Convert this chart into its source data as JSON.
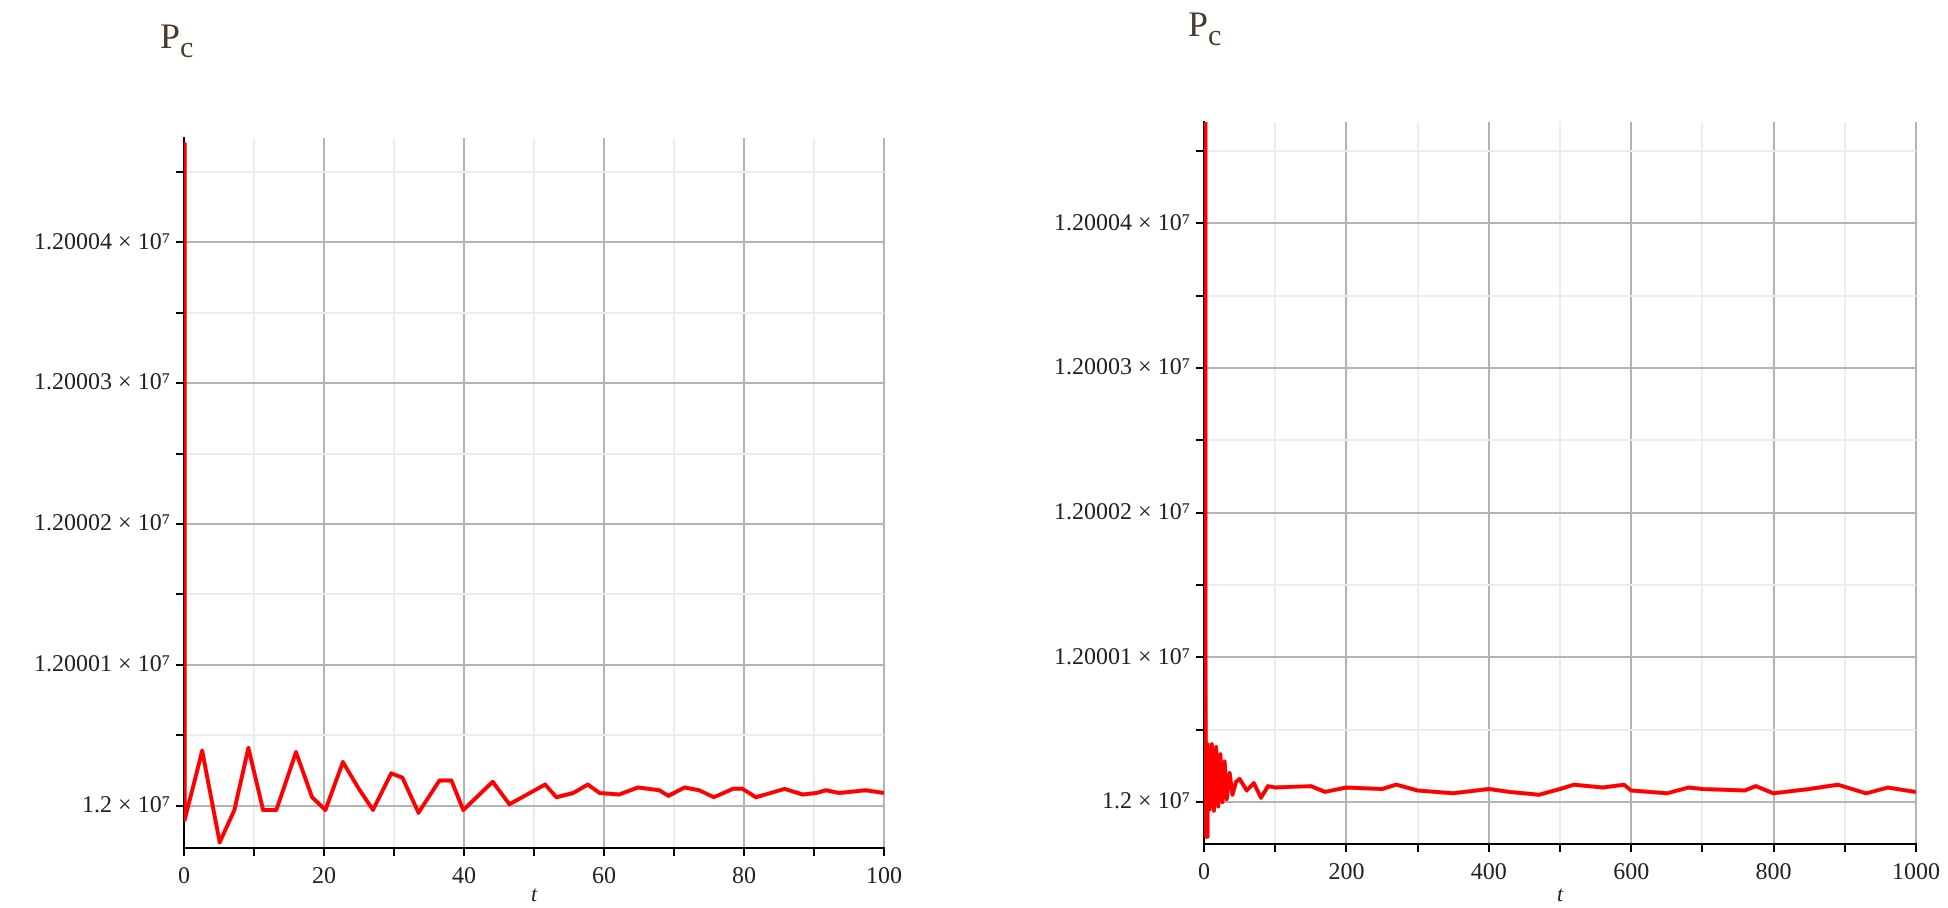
{
  "chart_data": [
    {
      "type": "line",
      "title": "P$_{c}$",
      "xlabel": "t",
      "marker": "none",
      "line_style": "solid",
      "grid": true,
      "x": [
        0,
        0.1,
        2.6,
        5.1,
        7.2,
        9.2,
        11.3,
        13.2,
        16,
        18.3,
        20.2,
        22.7,
        25.1,
        27,
        29.6,
        31.2,
        33.5,
        36.5,
        38.2,
        39.9,
        44.1,
        46.5,
        51.6,
        53.2,
        55.6,
        57.7,
        59.4,
        62.2,
        64.9,
        67.9,
        69.2,
        71.5,
        73.6,
        75.7,
        78.4,
        79.8,
        81.7,
        85.8,
        88.4,
        90.3,
        91.7,
        93.6,
        97.4,
        100
      ],
      "series": [
        {
          "color": "#ff0000",
          "values": [
            12000470,
            11999990,
            12000039,
            11999974,
            11999997,
            12000041,
            11999997,
            11999997,
            12000038,
            12000006,
            11999997,
            12000031,
            12000011,
            11999997,
            12000023,
            12000020,
            11999995,
            12000018,
            12000018,
            11999997,
            12000017,
            12000001,
            12000015,
            12000006,
            12000009,
            12000015,
            12000009,
            12000008,
            12000013,
            12000011,
            12000007,
            12000013,
            12000011,
            12000006,
            12000012,
            12000012,
            12000006,
            12000012,
            12000008,
            12000009,
            12000011,
            12000009,
            12000011,
            12000009
          ]
        }
      ],
      "xlim": [
        0,
        100
      ],
      "xticks": [
        0,
        {
          "value": 10,
          "label": null
        },
        20,
        {
          "value": 30,
          "label": null
        },
        40,
        {
          "value": 50,
          "label": null
        },
        60,
        {
          "value": 70,
          "label": null
        },
        80,
        {
          "value": 90,
          "label": null
        },
        100
      ],
      "ylim": [
        11999970,
        12000474
      ],
      "yticks": [
        {
          "value": 12000000,
          "label": "1.2 × 10⁷"
        },
        {
          "value": 12000050,
          "label": null
        },
        {
          "value": 12000100,
          "label": "1.20001 × 10⁷"
        },
        {
          "value": 12000150,
          "label": null
        },
        {
          "value": 12000200,
          "label": "1.20002 × 10⁷"
        },
        {
          "value": 12000250,
          "label": null
        },
        {
          "value": 12000300,
          "label": "1.20003 × 10⁷"
        },
        {
          "value": 12000350,
          "label": null
        },
        {
          "value": 12000400,
          "label": "1.20004 × 10⁷"
        },
        {
          "value": 12000450,
          "label": null
        }
      ]
    },
    {
      "type": "line",
      "title": "P$_{c}$",
      "xlabel": "t",
      "marker": "none",
      "line_style": "solid",
      "grid": true,
      "x": [
        0,
        2,
        3,
        5,
        8,
        11,
        14,
        17,
        20,
        23,
        26,
        29,
        32,
        36,
        40,
        45,
        50,
        60,
        70,
        80,
        90,
        100,
        150,
        170,
        200,
        250,
        270,
        300,
        350,
        400,
        430,
        470,
        500,
        520,
        560,
        590,
        600,
        650,
        680,
        700,
        760,
        775,
        800,
        850,
        890,
        930,
        960,
        1000
      ],
      "series": [
        {
          "color": "#ff0000",
          "values": [
            12000470,
            12000115,
            11999976,
            12000040,
            11999995,
            12000040,
            11999994,
            12000038,
            11999997,
            12000033,
            12000000,
            12000028,
            12000002,
            12000020,
            12000005,
            12000014,
            12000016,
            12000008,
            12000013,
            12000003,
            12000011,
            12000010,
            12000011,
            12000007,
            12000010,
            12000009,
            12000012,
            12000008,
            12000006,
            12000009,
            12000007,
            12000005,
            12000009,
            12000012,
            12000010,
            12000012,
            12000008,
            12000006,
            12000010,
            12000009,
            12000008,
            12000011,
            12000006,
            12000009,
            12000012,
            12000006,
            12000010,
            12000007
          ]
        }
      ],
      "xlim": [
        0,
        1000
      ],
      "xticks": [
        0,
        {
          "value": 100,
          "label": null
        },
        200,
        {
          "value": 300,
          "label": null
        },
        400,
        {
          "value": 500,
          "label": null
        },
        600,
        {
          "value": 700,
          "label": null
        },
        800,
        {
          "value": 900,
          "label": null
        },
        1000
      ],
      "ylim": [
        11999971,
        12000470
      ],
      "yticks": [
        {
          "value": 12000000,
          "label": "1.2 × 10⁷"
        },
        {
          "value": 12000050,
          "label": null
        },
        {
          "value": 12000100,
          "label": "1.20001 × 10⁷"
        },
        {
          "value": 12000150,
          "label": null
        },
        {
          "value": 12000200,
          "label": "1.20002 × 10⁷"
        },
        {
          "value": 12000250,
          "label": null
        },
        {
          "value": 12000300,
          "label": "1.20003 × 10⁷"
        },
        {
          "value": 12000350,
          "label": null
        },
        {
          "value": 12000400,
          "label": "1.20004 × 10⁷"
        },
        {
          "value": 12000450,
          "label": null
        }
      ]
    }
  ]
}
